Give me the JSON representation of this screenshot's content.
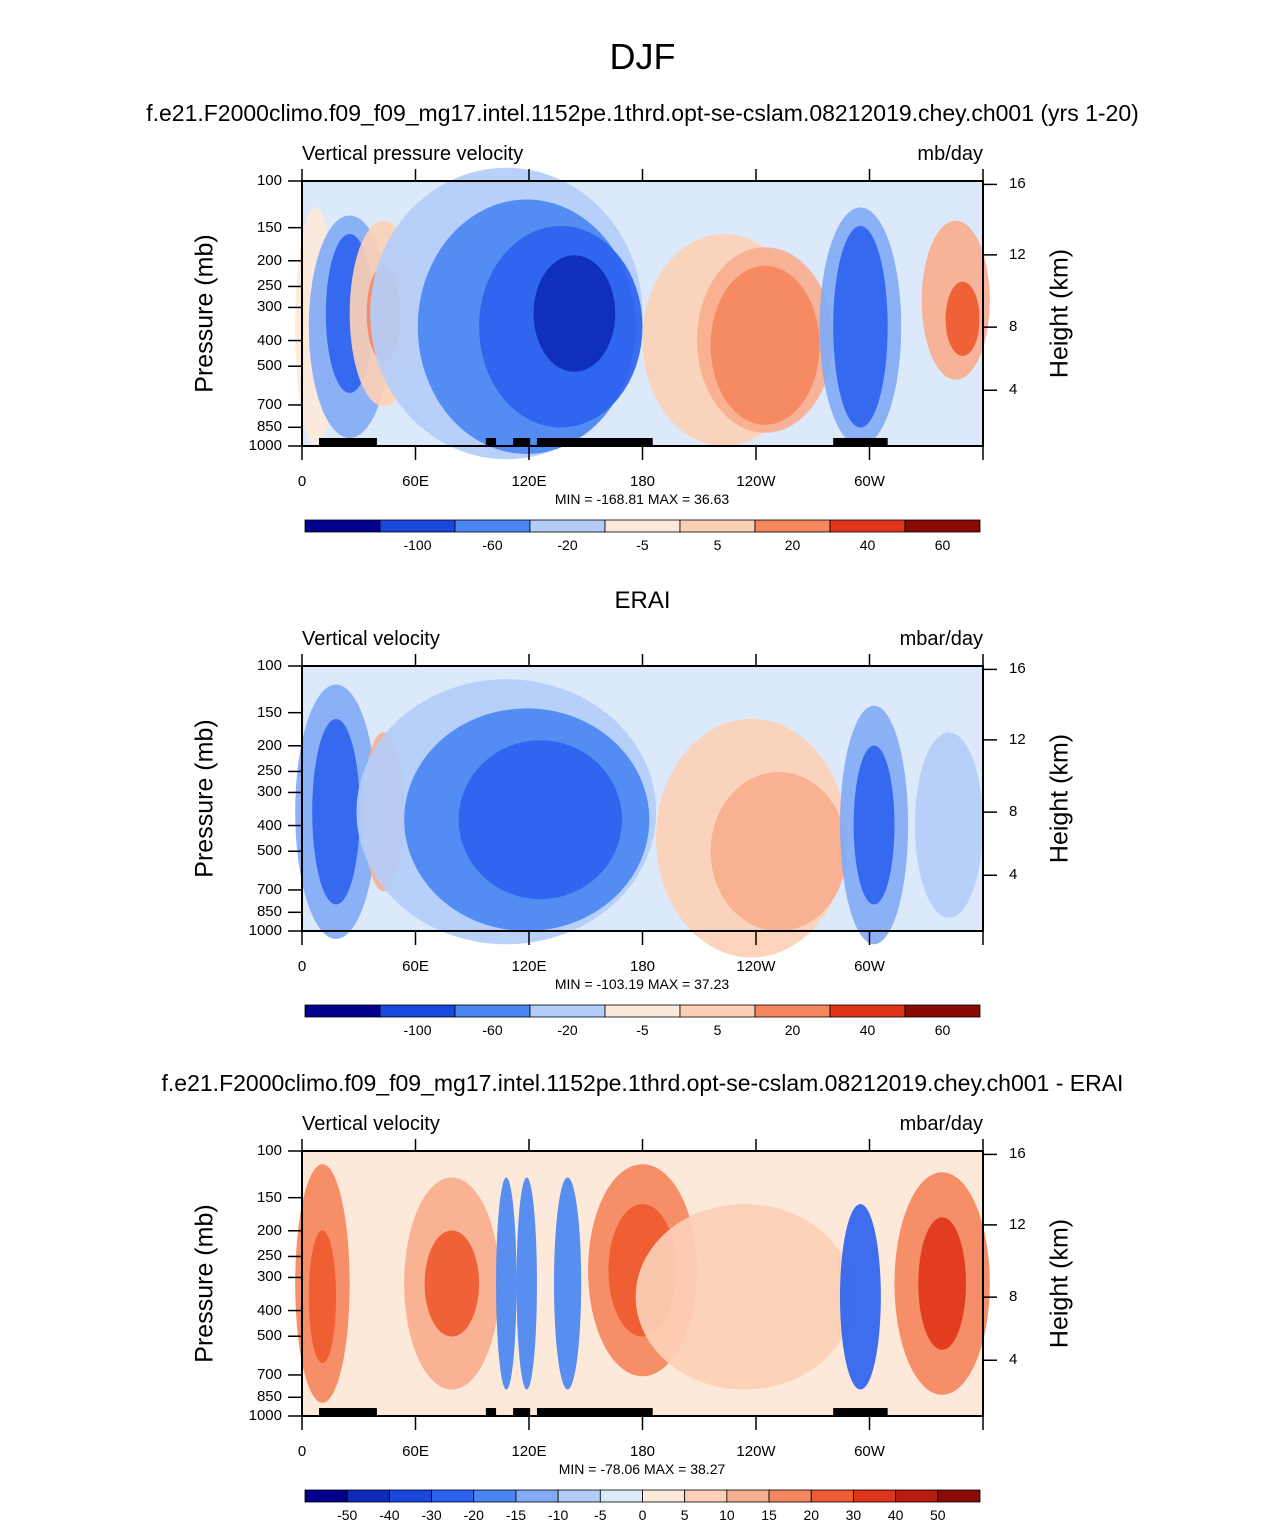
{
  "title": "DJF",
  "colors": {
    "levels": [
      "#00008c",
      "#0c2bb8",
      "#1a48dc",
      "#2e63ef",
      "#4a86f2",
      "#82aaf5",
      "#b3cdf8",
      "#dce9fb",
      "#fde9d9",
      "#fcd0b6",
      "#f8ae8e",
      "#f5875e",
      "#ef5a30",
      "#e0351b",
      "#b81c10",
      "#8a0a05"
    ]
  },
  "panels": [
    {
      "case_title": "f.e21.F2000climo.f09_f09_mg17.intel.1152pe.1thrd.opt-se-cslam.08212019.chey.ch001 (yrs 1-20)",
      "left_label": "Vertical pressure velocity",
      "right_label": "mb/day",
      "minmax": "MIN = -168.81  MAX =  36.63",
      "ylabel": "Pressure (mb)",
      "y2label": "Height (km)"
    },
    {
      "case_title": "ERAI",
      "left_label": "Vertical velocity",
      "right_label": "mbar/day",
      "minmax": "MIN = -103.19  MAX =  37.23",
      "ylabel": "Pressure (mb)",
      "y2label": "Height (km)"
    },
    {
      "case_title": "f.e21.F2000climo.f09_f09_mg17.intel.1152pe.1thrd.opt-se-cslam.08212019.chey.ch001 - ERAI",
      "left_label": "Vertical velocity",
      "right_label": "mbar/day",
      "minmax": "MIN = -78.06  MAX =  38.27",
      "ylabel": "Pressure (mb)",
      "y2label": "Height (km)"
    }
  ],
  "axes": {
    "pressure_ticks": [
      "100",
      "150",
      "200",
      "250",
      "300",
      "400",
      "500",
      "700",
      "850",
      "1000"
    ],
    "height_ticks": [
      "16",
      "12",
      "8",
      "4"
    ],
    "lon_ticks": [
      "0",
      "60E",
      "120E",
      "180",
      "120W",
      "60W"
    ]
  },
  "colorbars": [
    [
      "-100",
      "-60",
      "-20",
      "-5",
      "5",
      "20",
      "40",
      "60"
    ],
    [
      "-100",
      "-60",
      "-20",
      "-5",
      "5",
      "20",
      "40",
      "60"
    ],
    [
      "-50",
      "-40",
      "-30",
      "-20",
      "-15",
      "-10",
      "-5",
      "0",
      "5",
      "10",
      "15",
      "20",
      "30",
      "40",
      "50"
    ]
  ],
  "chart_data": [
    {
      "type": "heatmap",
      "title": "DJF",
      "subtitle": "f.e21.F2000climo.f09_f09_mg17.intel.1152pe.1thrd.opt-se-cslam.08212019.chey.ch001 (yrs 1-20)",
      "variable": "Vertical pressure velocity",
      "units": "mb/day",
      "xlabel": "",
      "ylabel": "Pressure (mb)",
      "y2label": "Height (km)",
      "xlim": [
        0,
        360
      ],
      "ylim": [
        1000,
        100
      ],
      "min": -168.81,
      "max": 36.63,
      "y_scale": "log",
      "colorbar_levels": [
        -100,
        -60,
        -20,
        -5,
        5,
        20,
        40,
        60
      ]
    },
    {
      "type": "heatmap",
      "title": "ERAI",
      "variable": "Vertical velocity",
      "units": "mbar/day",
      "xlabel": "",
      "ylabel": "Pressure (mb)",
      "y2label": "Height (km)",
      "xlim": [
        0,
        360
      ],
      "ylim": [
        1000,
        100
      ],
      "min": -103.19,
      "max": 37.23,
      "y_scale": "log",
      "colorbar_levels": [
        -100,
        -60,
        -20,
        -5,
        5,
        20,
        40,
        60
      ]
    },
    {
      "type": "heatmap",
      "title": "f.e21.F2000climo.f09_f09_mg17.intel.1152pe.1thrd.opt-se-cslam.08212019.chey.ch001 - ERAI",
      "variable": "Vertical velocity",
      "units": "mbar/day",
      "xlabel": "",
      "ylabel": "Pressure (mb)",
      "y2label": "Height (km)",
      "xlim": [
        0,
        360
      ],
      "ylim": [
        1000,
        100
      ],
      "min": -78.06,
      "max": 38.27,
      "y_scale": "log",
      "colorbar_levels": [
        -50,
        -40,
        -30,
        -20,
        -15,
        -10,
        -5,
        0,
        5,
        10,
        15,
        20,
        30,
        40,
        50
      ]
    }
  ]
}
